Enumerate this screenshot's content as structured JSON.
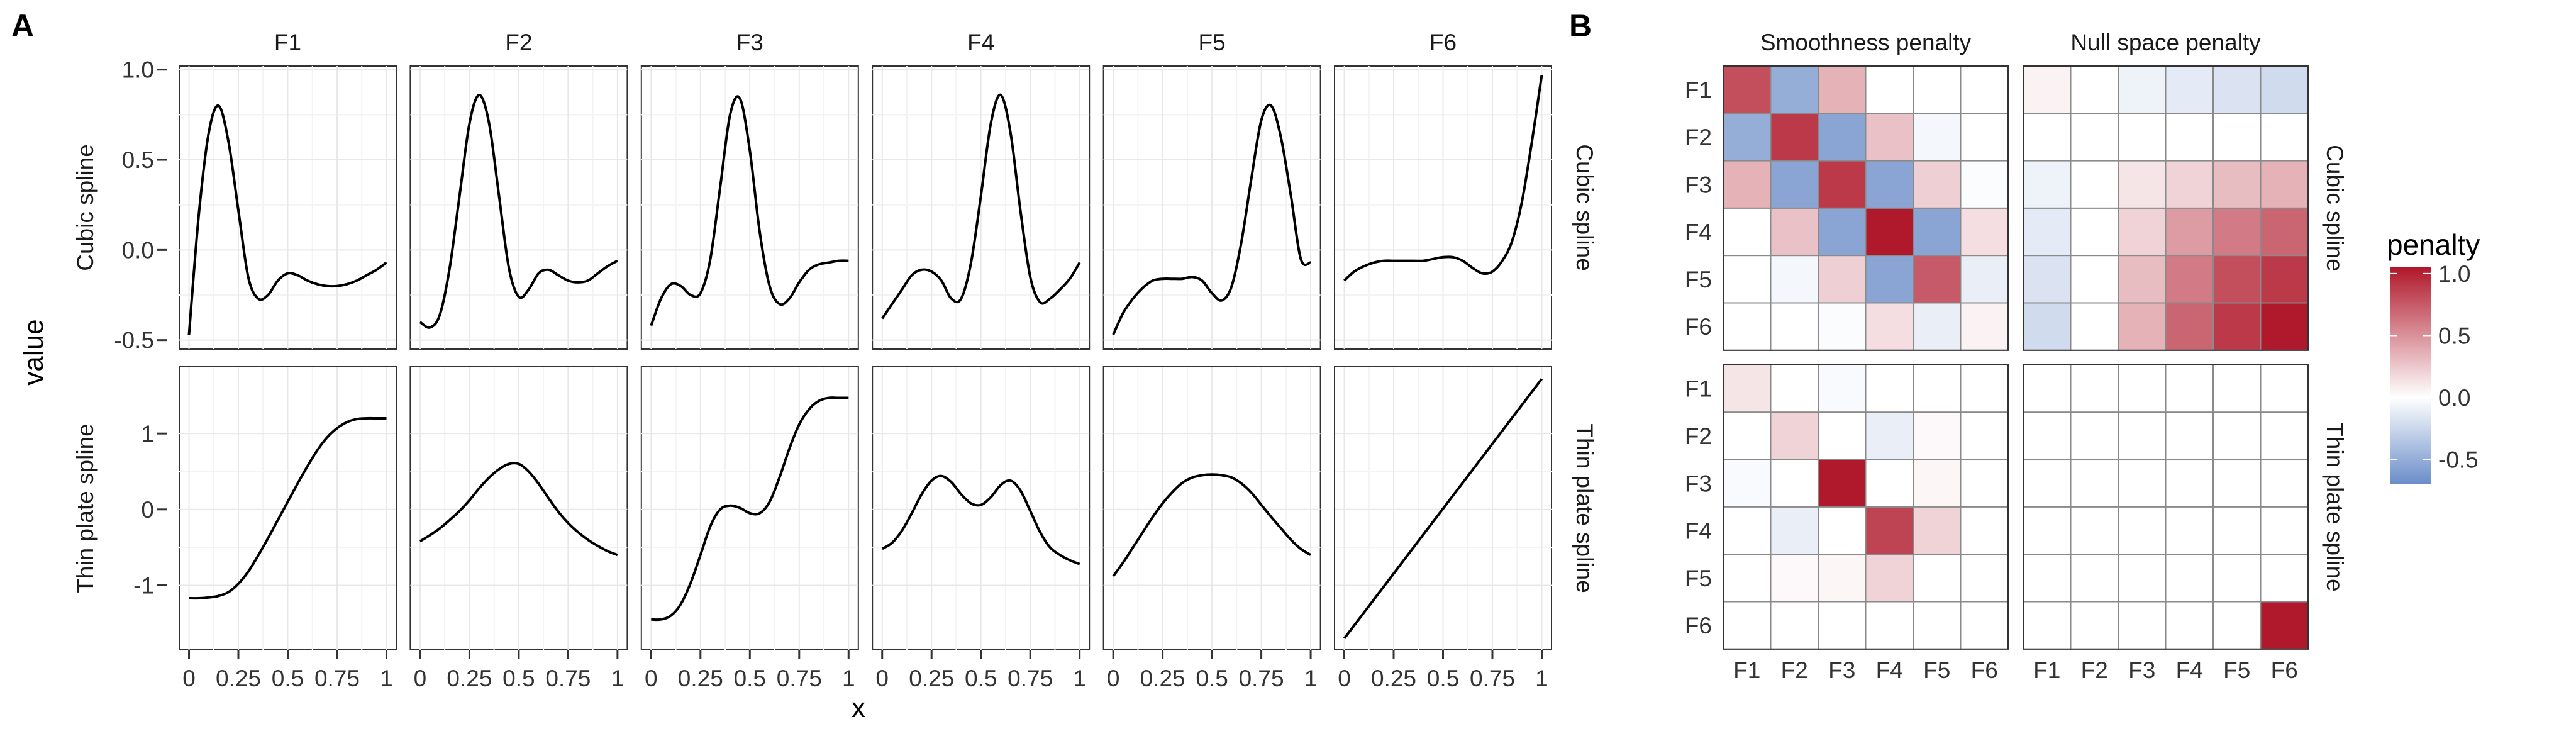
{
  "panels": {
    "a": "A",
    "b": "B"
  },
  "chart_data": [
    {
      "type": "line",
      "panel": "A",
      "xlabel": "x",
      "ylabel": "value",
      "columns": [
        "F1",
        "F2",
        "F3",
        "F4",
        "F5",
        "F6"
      ],
      "x_ticks": [
        0,
        0.25,
        0.5,
        0.75,
        1
      ],
      "x_tick_labels": [
        "0",
        "0.25",
        "0.5",
        "0.75",
        "1"
      ],
      "grid": true,
      "rows": [
        {
          "label": "Cubic spline",
          "ylim": [
            -0.55,
            1.02
          ],
          "y_ticks": [
            -0.5,
            0.0,
            0.5,
            1.0
          ],
          "y_tick_labels": [
            "-0.5",
            "0.0",
            "0.5",
            "1.0"
          ],
          "series": [
            {
              "name": "F1",
              "x": [
                0,
                0.05,
                0.1,
                0.15,
                0.2,
                0.25,
                0.3,
                0.35,
                0.4,
                0.45,
                0.5,
                0.55,
                0.6,
                0.65,
                0.7,
                0.75,
                0.8,
                0.85,
                0.9,
                0.95,
                1
              ],
              "y": [
                -0.47,
                0.2,
                0.65,
                0.8,
                0.6,
                0.22,
                -0.15,
                -0.27,
                -0.25,
                -0.17,
                -0.13,
                -0.14,
                -0.17,
                -0.19,
                -0.2,
                -0.2,
                -0.19,
                -0.17,
                -0.14,
                -0.11,
                -0.07
              ]
            },
            {
              "name": "F2",
              "x": [
                0,
                0.05,
                0.1,
                0.15,
                0.2,
                0.25,
                0.3,
                0.35,
                0.4,
                0.45,
                0.5,
                0.55,
                0.6,
                0.65,
                0.7,
                0.75,
                0.8,
                0.85,
                0.9,
                0.95,
                1
              ],
              "y": [
                -0.4,
                -0.43,
                -0.36,
                -0.1,
                0.3,
                0.7,
                0.86,
                0.7,
                0.3,
                -0.1,
                -0.26,
                -0.22,
                -0.13,
                -0.11,
                -0.14,
                -0.17,
                -0.18,
                -0.17,
                -0.13,
                -0.09,
                -0.06
              ]
            },
            {
              "name": "F3",
              "x": [
                0,
                0.05,
                0.1,
                0.15,
                0.2,
                0.25,
                0.3,
                0.35,
                0.4,
                0.45,
                0.5,
                0.55,
                0.6,
                0.65,
                0.7,
                0.75,
                0.8,
                0.85,
                0.9,
                0.95,
                1
              ],
              "y": [
                -0.42,
                -0.27,
                -0.19,
                -0.2,
                -0.25,
                -0.24,
                -0.05,
                0.35,
                0.75,
                0.84,
                0.55,
                0.1,
                -0.2,
                -0.3,
                -0.27,
                -0.18,
                -0.11,
                -0.08,
                -0.07,
                -0.06,
                -0.06
              ]
            },
            {
              "name": "F4",
              "x": [
                0,
                0.05,
                0.1,
                0.15,
                0.2,
                0.25,
                0.3,
                0.35,
                0.4,
                0.45,
                0.5,
                0.55,
                0.6,
                0.65,
                0.7,
                0.75,
                0.8,
                0.85,
                0.9,
                0.95,
                1
              ],
              "y": [
                -0.38,
                -0.3,
                -0.22,
                -0.14,
                -0.11,
                -0.12,
                -0.17,
                -0.27,
                -0.27,
                -0.07,
                0.3,
                0.7,
                0.86,
                0.65,
                0.22,
                -0.15,
                -0.29,
                -0.27,
                -0.22,
                -0.16,
                -0.07
              ]
            },
            {
              "name": "F5",
              "x": [
                0,
                0.05,
                0.1,
                0.15,
                0.2,
                0.25,
                0.3,
                0.35,
                0.4,
                0.45,
                0.5,
                0.55,
                0.6,
                0.65,
                0.7,
                0.75,
                0.8,
                0.85,
                0.9,
                0.95,
                1
              ],
              "y": [
                -0.47,
                -0.35,
                -0.27,
                -0.21,
                -0.17,
                -0.16,
                -0.16,
                -0.16,
                -0.15,
                -0.17,
                -0.24,
                -0.28,
                -0.2,
                0.05,
                0.4,
                0.72,
                0.8,
                0.62,
                0.3,
                -0.05,
                -0.07
              ]
            },
            {
              "name": "F6",
              "x": [
                0,
                0.05,
                0.1,
                0.15,
                0.2,
                0.25,
                0.3,
                0.35,
                0.4,
                0.45,
                0.5,
                0.55,
                0.6,
                0.65,
                0.7,
                0.75,
                0.8,
                0.85,
                0.9,
                0.95,
                1
              ],
              "y": [
                -0.17,
                -0.12,
                -0.09,
                -0.07,
                -0.06,
                -0.06,
                -0.06,
                -0.06,
                -0.06,
                -0.05,
                -0.04,
                -0.04,
                -0.06,
                -0.1,
                -0.13,
                -0.12,
                -0.06,
                0.05,
                0.27,
                0.6,
                0.97
              ]
            }
          ]
        },
        {
          "label": "Thin plate spline",
          "ylim": [
            -1.85,
            1.88
          ],
          "y_ticks": [
            -1,
            0,
            1
          ],
          "y_tick_labels": [
            "-1",
            "0",
            "1"
          ],
          "series": [
            {
              "name": "F1",
              "x": [
                0,
                0.05,
                0.1,
                0.15,
                0.2,
                0.25,
                0.3,
                0.35,
                0.4,
                0.45,
                0.5,
                0.55,
                0.6,
                0.65,
                0.7,
                0.75,
                0.8,
                0.85,
                0.9,
                0.95,
                1
              ],
              "y": [
                -1.17,
                -1.17,
                -1.16,
                -1.14,
                -1.09,
                -0.98,
                -0.82,
                -0.61,
                -0.38,
                -0.14,
                0.1,
                0.34,
                0.57,
                0.78,
                0.95,
                1.07,
                1.15,
                1.19,
                1.2,
                1.2,
                1.2
              ]
            },
            {
              "name": "F2",
              "x": [
                0,
                0.05,
                0.1,
                0.15,
                0.2,
                0.25,
                0.3,
                0.35,
                0.4,
                0.45,
                0.5,
                0.55,
                0.6,
                0.65,
                0.7,
                0.75,
                0.8,
                0.85,
                0.9,
                0.95,
                1
              ],
              "y": [
                -0.42,
                -0.34,
                -0.25,
                -0.14,
                -0.02,
                0.12,
                0.28,
                0.42,
                0.53,
                0.6,
                0.6,
                0.5,
                0.34,
                0.15,
                -0.03,
                -0.18,
                -0.3,
                -0.4,
                -0.48,
                -0.55,
                -0.6
              ]
            },
            {
              "name": "F3",
              "x": [
                0,
                0.05,
                0.1,
                0.15,
                0.2,
                0.25,
                0.3,
                0.35,
                0.4,
                0.45,
                0.5,
                0.55,
                0.6,
                0.65,
                0.7,
                0.75,
                0.8,
                0.85,
                0.9,
                0.95,
                1
              ],
              "y": [
                -1.45,
                -1.45,
                -1.4,
                -1.25,
                -0.97,
                -0.6,
                -0.22,
                0.0,
                0.05,
                0.02,
                -0.05,
                -0.05,
                0.1,
                0.42,
                0.8,
                1.12,
                1.32,
                1.43,
                1.47,
                1.47,
                1.47
              ]
            },
            {
              "name": "F4",
              "x": [
                0,
                0.05,
                0.1,
                0.15,
                0.2,
                0.25,
                0.3,
                0.35,
                0.4,
                0.45,
                0.5,
                0.55,
                0.6,
                0.65,
                0.7,
                0.75,
                0.8,
                0.85,
                0.9,
                0.95,
                1
              ],
              "y": [
                -0.52,
                -0.44,
                -0.28,
                -0.05,
                0.2,
                0.38,
                0.44,
                0.36,
                0.2,
                0.08,
                0.06,
                0.16,
                0.32,
                0.38,
                0.25,
                -0.02,
                -0.3,
                -0.5,
                -0.6,
                -0.67,
                -0.72
              ]
            },
            {
              "name": "F5",
              "x": [
                0,
                0.05,
                0.1,
                0.15,
                0.2,
                0.25,
                0.3,
                0.35,
                0.4,
                0.45,
                0.5,
                0.55,
                0.6,
                0.65,
                0.7,
                0.75,
                0.8,
                0.85,
                0.9,
                0.95,
                1
              ],
              "y": [
                -0.88,
                -0.7,
                -0.5,
                -0.3,
                -0.1,
                0.08,
                0.23,
                0.35,
                0.42,
                0.45,
                0.46,
                0.45,
                0.42,
                0.34,
                0.22,
                0.06,
                -0.1,
                -0.25,
                -0.4,
                -0.52,
                -0.6
              ]
            },
            {
              "name": "F6",
              "x": [
                0,
                1
              ],
              "y": [
                -1.7,
                1.72
              ]
            }
          ]
        }
      ]
    },
    {
      "type": "heatmap",
      "panel": "B",
      "columns": [
        "Smoothness penalty",
        "Null space penalty"
      ],
      "rows": [
        "Cubic spline",
        "Thin plate spline"
      ],
      "x_categories": [
        "F1",
        "F2",
        "F3",
        "F4",
        "F5",
        "F6"
      ],
      "y_categories": [
        "F1",
        "F2",
        "F3",
        "F4",
        "F5",
        "F6"
      ],
      "color_scale": {
        "low": "#6a8dc8",
        "mid": "#ffffff",
        "high": "#b0182b",
        "min": -0.7,
        "max": 1.05
      },
      "legend": {
        "title": "penalty",
        "ticks": [
          1.0,
          0.5,
          0.0,
          -0.5
        ],
        "tick_labels": [
          "1.0",
          "0.5",
          "0.0",
          "-0.5"
        ],
        "placement": "right"
      },
      "matrices": [
        [
          [
            0.8,
            -0.5,
            0.35,
            0.0,
            0.0,
            0.0
          ],
          [
            -0.5,
            0.9,
            -0.55,
            0.28,
            -0.05,
            0.0
          ],
          [
            0.35,
            -0.55,
            0.9,
            -0.55,
            0.22,
            -0.02
          ],
          [
            0.0,
            0.28,
            -0.55,
            1.05,
            -0.55,
            0.15
          ],
          [
            0.0,
            -0.05,
            0.22,
            -0.55,
            0.75,
            -0.1
          ],
          [
            0.0,
            0.0,
            -0.02,
            0.15,
            -0.1,
            0.06
          ]
        ],
        [
          [
            0.06,
            0.0,
            -0.08,
            -0.12,
            -0.17,
            -0.22
          ],
          [
            0.0,
            0.0,
            0.0,
            0.0,
            0.0,
            0.0
          ],
          [
            -0.08,
            0.0,
            0.12,
            0.2,
            0.3,
            0.35
          ],
          [
            -0.12,
            0.0,
            0.2,
            0.45,
            0.6,
            0.7
          ],
          [
            -0.17,
            0.0,
            0.3,
            0.6,
            0.8,
            0.9
          ],
          [
            -0.22,
            0.0,
            0.35,
            0.7,
            0.9,
            1.05
          ]
        ],
        [
          [
            0.12,
            0.0,
            -0.03,
            0.0,
            0.0,
            0.0
          ],
          [
            0.0,
            0.2,
            0.0,
            -0.1,
            0.03,
            0.0
          ],
          [
            -0.03,
            0.0,
            1.05,
            0.0,
            0.04,
            0.0
          ],
          [
            0.0,
            -0.1,
            0.0,
            0.85,
            0.2,
            0.0
          ],
          [
            0.0,
            0.03,
            0.04,
            0.2,
            0.0,
            0.0
          ],
          [
            0.0,
            0.0,
            0.0,
            0.0,
            0.0,
            0.0
          ]
        ],
        [
          [
            0.0,
            0.0,
            0.0,
            0.0,
            0.0,
            0.0
          ],
          [
            0.0,
            0.0,
            0.0,
            0.0,
            0.0,
            0.0
          ],
          [
            0.0,
            0.0,
            0.0,
            0.0,
            0.0,
            0.0
          ],
          [
            0.0,
            0.0,
            0.0,
            0.0,
            0.0,
            0.0
          ],
          [
            0.0,
            0.0,
            0.0,
            0.0,
            0.0,
            0.0
          ],
          [
            0.0,
            0.0,
            0.0,
            0.0,
            0.0,
            1.05
          ]
        ]
      ]
    }
  ]
}
